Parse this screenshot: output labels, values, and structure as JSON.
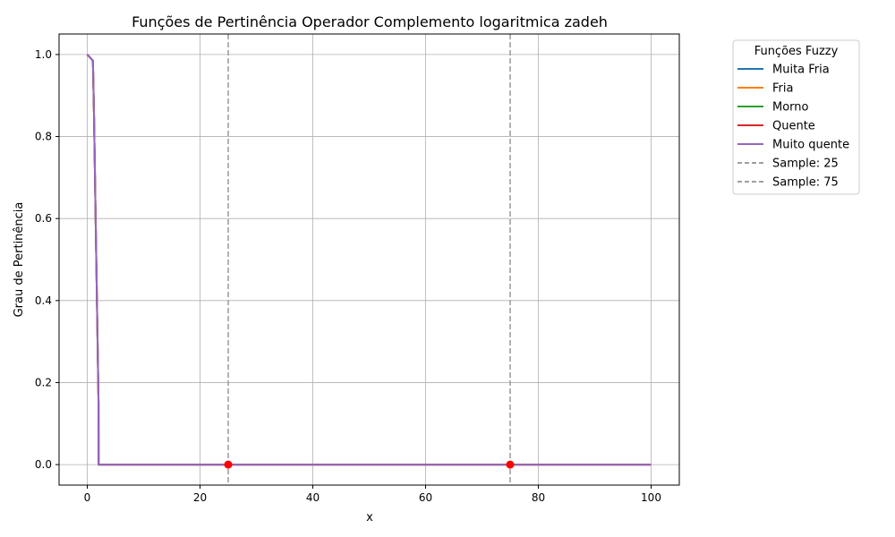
{
  "chart_data": {
    "type": "line",
    "title": "Funções de Pertinência Operador Complemento logaritmica zadeh",
    "xlabel": "x",
    "ylabel": "Grau de Pertinência",
    "xlim": [
      -5,
      105
    ],
    "ylim": [
      -0.05,
      1.05
    ],
    "xticks": [
      0,
      20,
      40,
      60,
      80,
      100
    ],
    "yticks": [
      0.0,
      0.2,
      0.4,
      0.6,
      0.8,
      1.0
    ],
    "xtick_labels": [
      "0",
      "20",
      "40",
      "60",
      "80",
      "100"
    ],
    "ytick_labels": [
      "0.0",
      "0.2",
      "0.4",
      "0.6",
      "0.8",
      "1.0"
    ],
    "grid": true,
    "legend_title": "Funções Fuzzy",
    "legend_position": "outside-top-right",
    "series": [
      {
        "name": "Muita Fria",
        "color": "#1f77b4",
        "style": "solid",
        "x": [
          0,
          1,
          1.2,
          1.6,
          2,
          2.01,
          100
        ],
        "y": [
          1.0,
          0.985,
          0.85,
          0.5,
          0.15,
          0.0,
          0.0
        ]
      },
      {
        "name": "Fria",
        "color": "#ff7f0e",
        "style": "solid",
        "x": [
          0,
          1,
          1.2,
          1.6,
          2,
          2.01,
          100
        ],
        "y": [
          1.0,
          0.985,
          0.85,
          0.5,
          0.15,
          0.0,
          0.0
        ]
      },
      {
        "name": "Morno",
        "color": "#2ca02c",
        "style": "solid",
        "x": [
          0,
          1,
          1.2,
          1.6,
          2,
          2.01,
          100
        ],
        "y": [
          1.0,
          0.985,
          0.85,
          0.5,
          0.15,
          0.0,
          0.0
        ]
      },
      {
        "name": "Quente",
        "color": "#d62728",
        "style": "solid",
        "x": [
          0,
          1,
          1.2,
          1.6,
          2,
          2.01,
          100
        ],
        "y": [
          1.0,
          0.985,
          0.85,
          0.5,
          0.15,
          0.0,
          0.0
        ]
      },
      {
        "name": "Muito quente",
        "color": "#9467bd",
        "style": "solid",
        "x": [
          0,
          1,
          1.2,
          1.6,
          2,
          2.01,
          100
        ],
        "y": [
          1.0,
          0.985,
          0.85,
          0.5,
          0.15,
          0.0,
          0.0
        ]
      }
    ],
    "vlines": [
      {
        "name": "Sample: 25",
        "x": 25,
        "color": "#a0a0a0",
        "style": "dashed"
      },
      {
        "name": "Sample: 75",
        "x": 75,
        "color": "#a0a0a0",
        "style": "dashed"
      }
    ],
    "points": [
      {
        "x": 25,
        "y": 0.0,
        "color": "#ff0000"
      },
      {
        "x": 75,
        "y": 0.0,
        "color": "#ff0000"
      }
    ]
  }
}
